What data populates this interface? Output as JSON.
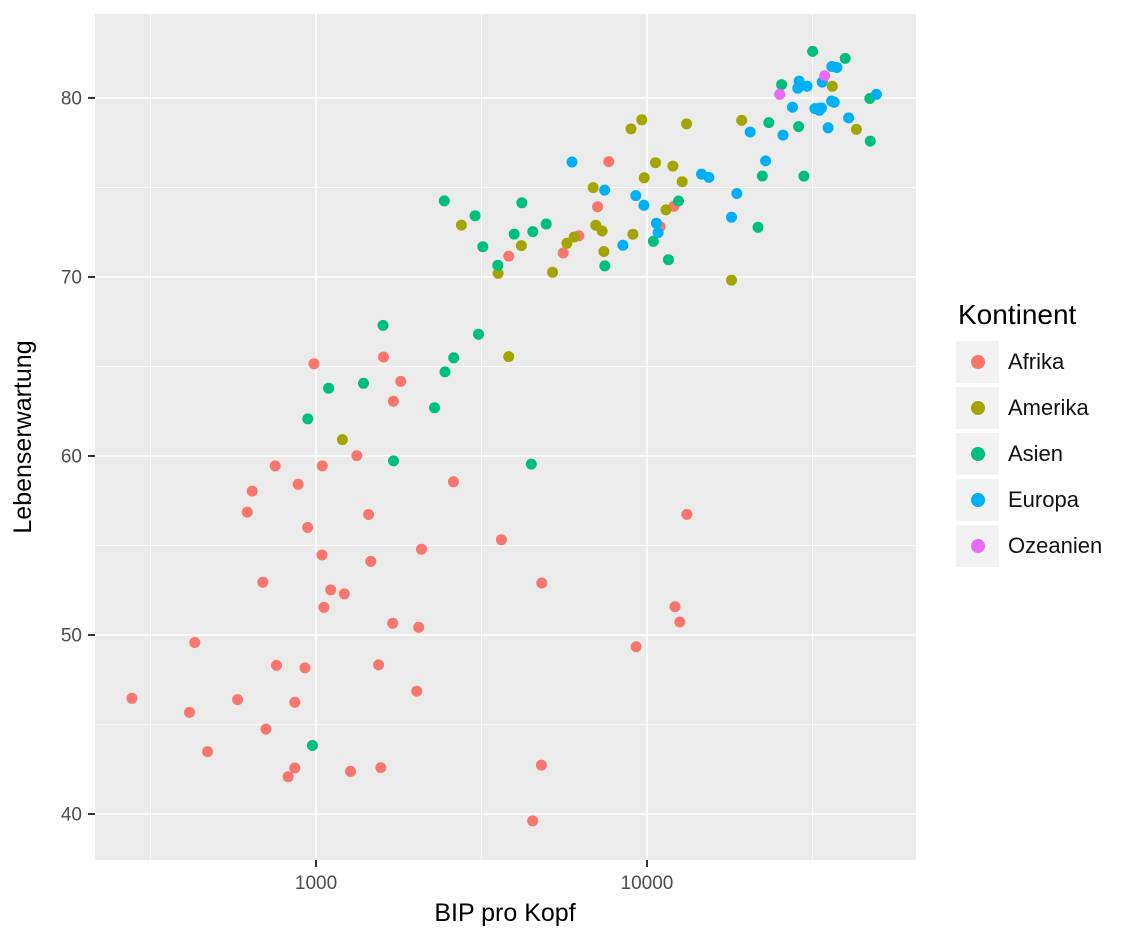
{
  "chart_data": {
    "type": "scatter",
    "xlabel": "BIP pro Kopf",
    "ylabel": "Lebenserwartung",
    "legend_title": "Kontinent",
    "legend_position": "right",
    "x_scale": "log10",
    "x_ticks": [
      1000,
      10000
    ],
    "x_tick_labels": [
      "1000",
      "10000"
    ],
    "x_minor_ticks": [
      316.228,
      3162.278,
      31622.777
    ],
    "x_range_log10": [
      2.332,
      4.813
    ],
    "y_ticks": [
      40,
      50,
      60,
      70,
      80
    ],
    "y_tick_labels": [
      "40",
      "50",
      "60",
      "70",
      "80"
    ],
    "y_minor_ticks": [
      45,
      55,
      65,
      75
    ],
    "y_range": [
      37.43,
      84.69
    ],
    "grid": true,
    "panel_background": "#EBEBEB",
    "grid_color": "#FFFFFF",
    "tick_color": "#333333",
    "tick_label_color": "#4D4D4D",
    "series": [
      {
        "name": "Afrika",
        "color": "#F8766D",
        "points": [
          [
            6223.4,
            72.301
          ],
          [
            4797.2,
            42.731
          ],
          [
            1441.3,
            56.728
          ],
          [
            12569.9,
            50.728
          ],
          [
            1217.0,
            52.295
          ],
          [
            430.1,
            49.58
          ],
          [
            2042.1,
            50.43
          ],
          [
            706.0,
            44.741
          ],
          [
            1704.1,
            50.651
          ],
          [
            986.1,
            65.152
          ],
          [
            277.6,
            46.462
          ],
          [
            3632.6,
            55.322
          ],
          [
            1544.8,
            48.328
          ],
          [
            2082.5,
            54.791
          ],
          [
            5581.2,
            71.338
          ],
          [
            12154.1,
            51.579
          ],
          [
            641.4,
            58.04
          ],
          [
            690.8,
            52.947
          ],
          [
            13206.5,
            56.735
          ],
          [
            752.7,
            59.448
          ],
          [
            1327.6,
            60.022
          ],
          [
            942.7,
            56.007
          ],
          [
            579.2,
            46.388
          ],
          [
            1463.2,
            54.11
          ],
          [
            1569.3,
            42.592
          ],
          [
            414.5,
            45.678
          ],
          [
            12057.5,
            73.952
          ],
          [
            1044.8,
            59.443
          ],
          [
            759.3,
            48.303
          ],
          [
            1042.6,
            54.467
          ],
          [
            1803.2,
            64.164
          ],
          [
            10957.0,
            72.801
          ],
          [
            3820.2,
            71.164
          ],
          [
            823.7,
            42.082
          ],
          [
            4811.1,
            52.906
          ],
          [
            619.7,
            56.867
          ],
          [
            2014.0,
            46.859
          ],
          [
            7670.1,
            76.442
          ],
          [
            863.1,
            46.242
          ],
          [
            1598.4,
            65.528
          ],
          [
            1712.5,
            63.062
          ],
          [
            862.5,
            42.568
          ],
          [
            926.1,
            48.159
          ],
          [
            9269.7,
            49.339
          ],
          [
            2602.4,
            58.556
          ],
          [
            4513.5,
            39.613
          ],
          [
            1107.5,
            52.517
          ],
          [
            883.0,
            58.42
          ],
          [
            7092.9,
            73.923
          ],
          [
            1056.4,
            51.542
          ],
          [
            1271.2,
            42.384
          ],
          [
            469.7,
            43.487
          ]
        ]
      },
      {
        "name": "Amerika",
        "color": "#A3A500",
        "points": [
          [
            12779.4,
            75.32
          ],
          [
            3822.1,
            65.554
          ],
          [
            9065.8,
            72.39
          ],
          [
            36319.2,
            80.653
          ],
          [
            13171.6,
            78.553
          ],
          [
            7006.6,
            72.889
          ],
          [
            9645.1,
            78.782
          ],
          [
            8948.1,
            78.273
          ],
          [
            6025.4,
            72.235
          ],
          [
            6873.3,
            74.994
          ],
          [
            5728.4,
            71.878
          ],
          [
            5186.1,
            70.259
          ],
          [
            1201.6,
            60.916
          ],
          [
            3548.3,
            70.198
          ],
          [
            7320.9,
            72.567
          ],
          [
            11977.6,
            76.195
          ],
          [
            2749.3,
            72.899
          ],
          [
            9809.2,
            75.537
          ],
          [
            4172.8,
            71.752
          ],
          [
            7408.9,
            71.421
          ],
          [
            19328.7,
            78.746
          ],
          [
            18008.5,
            69.819
          ],
          [
            42951.7,
            78.242
          ],
          [
            10611.5,
            76.384
          ],
          [
            11415.8,
            73.747
          ]
        ]
      },
      {
        "name": "Asien",
        "color": "#00BF7D",
        "points": [
          [
            974.6,
            43.828
          ],
          [
            29796.0,
            75.635
          ],
          [
            1391.3,
            64.062
          ],
          [
            1713.8,
            59.723
          ],
          [
            4959.1,
            72.961
          ],
          [
            39725.0,
            82.208
          ],
          [
            2452.2,
            64.698
          ],
          [
            3540.7,
            70.65
          ],
          [
            11605.7,
            70.964
          ],
          [
            4471.1,
            59.545
          ],
          [
            25523.3,
            80.745
          ],
          [
            31656.1,
            82.603
          ],
          [
            4519.5,
            72.535
          ],
          [
            1593.1,
            67.297
          ],
          [
            23348.1,
            78.623
          ],
          [
            47306.99,
            77.588
          ],
          [
            10461.1,
            71.993
          ],
          [
            12451.7,
            74.241
          ],
          [
            3095.8,
            66.803
          ],
          [
            944.0,
            62.069
          ],
          [
            1091.4,
            63.785
          ],
          [
            22316.2,
            75.64
          ],
          [
            2605.9,
            65.483
          ],
          [
            3190.5,
            71.688
          ],
          [
            21654.8,
            72.777
          ],
          [
            47143.2,
            79.972
          ],
          [
            3970.1,
            72.396
          ],
          [
            4184.5,
            74.143
          ],
          [
            28718.3,
            78.4
          ],
          [
            7458.4,
            70.616
          ],
          [
            2441.6,
            74.249
          ],
          [
            3025.3,
            73.422
          ],
          [
            2280.8,
            62.698
          ]
        ]
      },
      {
        "name": "Europa",
        "color": "#00B0F6",
        "points": [
          [
            5937.0,
            76.423
          ],
          [
            36126.5,
            79.829
          ],
          [
            33692.6,
            79.441
          ],
          [
            7446.3,
            74.852
          ],
          [
            10680.8,
            73.005
          ],
          [
            14619.2,
            75.748
          ],
          [
            22833.3,
            76.486
          ],
          [
            35278.4,
            78.332
          ],
          [
            33207.1,
            79.313
          ],
          [
            30470.0,
            80.657
          ],
          [
            32170.4,
            79.406
          ],
          [
            27538.4,
            79.483
          ],
          [
            18008.9,
            73.338
          ],
          [
            36180.8,
            81.757
          ],
          [
            40676.0,
            78.885
          ],
          [
            28569.7,
            80.546
          ],
          [
            9253.9,
            74.543
          ],
          [
            36797.9,
            79.762
          ],
          [
            49357.2,
            80.196
          ],
          [
            15389.9,
            75.563
          ],
          [
            20509.6,
            78.098
          ],
          [
            10808.5,
            72.476
          ],
          [
            9786.5,
            74.002
          ],
          [
            18678.3,
            74.663
          ],
          [
            25768.3,
            77.926
          ],
          [
            28821.1,
            80.941
          ],
          [
            33859.7,
            80.884
          ],
          [
            37506.4,
            81.701
          ],
          [
            8458.3,
            71.777
          ],
          [
            33203.3,
            79.425
          ]
        ]
      },
      {
        "name": "Ozeanien",
        "color": "#E76BF3",
        "points": [
          [
            34435.4,
            81.235
          ],
          [
            25185.0,
            80.204
          ]
        ]
      }
    ]
  }
}
